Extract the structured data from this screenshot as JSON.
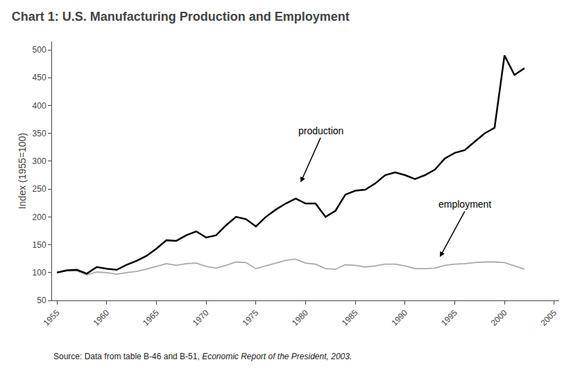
{
  "chart_data": {
    "type": "line",
    "title": "Chart 1: U.S. Manufacturing Production and Employment",
    "ylabel": "Index (1955=100)",
    "source": "Source: Data from table B-46 and B-51, ",
    "source_italic": "Economic Report of the President, 2003.",
    "x": [
      1955,
      1956,
      1957,
      1958,
      1959,
      1960,
      1961,
      1962,
      1963,
      1964,
      1965,
      1966,
      1967,
      1968,
      1969,
      1970,
      1971,
      1972,
      1973,
      1974,
      1975,
      1976,
      1977,
      1978,
      1979,
      1980,
      1981,
      1982,
      1983,
      1984,
      1985,
      1986,
      1987,
      1988,
      1989,
      1990,
      1991,
      1992,
      1993,
      1994,
      1995,
      1996,
      1997,
      1998,
      1999,
      2000,
      2001,
      2002
    ],
    "series": [
      {
        "name": "production",
        "color": "#000000",
        "values": [
          100,
          104,
          105,
          98,
          110,
          107,
          105,
          114,
          121,
          130,
          143,
          158,
          157,
          167,
          174,
          163,
          167,
          185,
          200,
          196,
          183,
          200,
          213,
          224,
          233,
          224,
          224,
          200,
          211,
          240,
          247,
          249,
          260,
          275,
          280,
          275,
          268,
          275,
          285,
          305,
          315,
          320,
          335,
          350,
          360,
          490,
          455,
          467
        ]
      },
      {
        "name": "employment",
        "color": "#aaaaaa",
        "values": [
          100,
          103,
          103,
          96,
          101,
          100,
          97,
          100,
          102,
          106,
          111,
          116,
          113,
          116,
          117,
          111,
          108,
          113,
          119,
          118,
          107,
          112,
          117,
          122,
          124,
          117,
          115,
          107,
          106,
          114,
          113,
          110,
          112,
          115,
          115,
          112,
          107,
          107,
          108,
          113,
          115,
          116,
          118,
          119,
          119,
          118,
          112,
          106
        ]
      }
    ],
    "annotations": [
      {
        "text": "production",
        "x": 1979.5,
        "y": 262,
        "text_x": 1981.5,
        "text_y": 342
      },
      {
        "text": "employment",
        "x": 1993.5,
        "y": 128,
        "text_x": 1996.0,
        "text_y": 210
      }
    ],
    "xlim": [
      1954.5,
      2005.5
    ],
    "xticks": [
      1955,
      1960,
      1965,
      1970,
      1975,
      1980,
      1985,
      1990,
      1995,
      2000,
      2005
    ],
    "ylim": [
      50,
      515
    ],
    "yticks": [
      50,
      100,
      150,
      200,
      250,
      300,
      350,
      400,
      450,
      500
    ],
    "grid": false
  }
}
